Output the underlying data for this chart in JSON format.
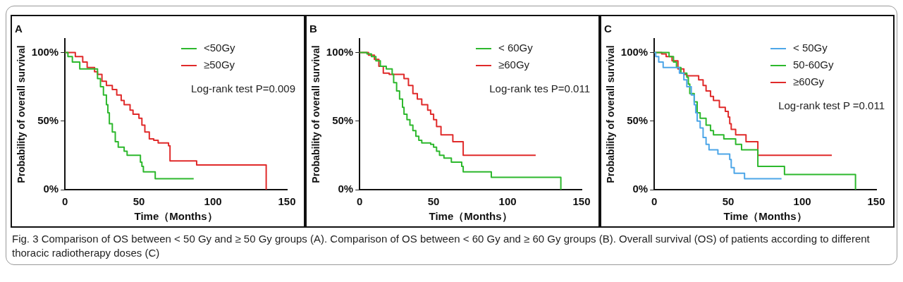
{
  "chart_data": [
    {
      "type": "step",
      "title": "A",
      "xlabel": "Time（Months）",
      "ylabel": "Probability of overall survival",
      "xlim": [
        0,
        150
      ],
      "xticks": [
        0,
        50,
        100,
        150
      ],
      "ylim": [
        0,
        110
      ],
      "yticks": [
        {
          "value": 0,
          "label": "0%"
        },
        {
          "value": 50,
          "label": "50%"
        },
        {
          "value": 100,
          "label": "100%"
        }
      ],
      "legend": "top right",
      "grid": false,
      "marker": "none",
      "annotations": [
        "Log-rank test P=0.009",
        "Fig. 3  Comparison of OS between < 50 Gy and ≥ 50 Gy groups (A). Comparison of OS between < 60 Gy and ≥ 60 Gy groups (B). Overall survival (OS) of patients according to different thoracic radiotherapy doses (C)"
      ],
      "series": [
        {
          "name": "<50Gy",
          "color": "#2db82d",
          "x": [
            0,
            2,
            5,
            10,
            22,
            24,
            26,
            28,
            29,
            30,
            32,
            34,
            36,
            40,
            42,
            51,
            52,
            53,
            61,
            87
          ],
          "values": [
            100,
            97,
            93,
            88,
            81,
            75,
            69,
            62,
            56,
            48,
            42,
            35,
            31,
            28,
            25,
            20,
            17,
            13,
            8,
            8
          ]
        },
        {
          "name": "≥50Gy",
          "color": "#e02a2a",
          "x": [
            0,
            7,
            12,
            15,
            20,
            22,
            25,
            28,
            32,
            35,
            38,
            40,
            44,
            46,
            50,
            52,
            54,
            57,
            60,
            63,
            70,
            71,
            89,
            136
          ],
          "values": [
            100,
            97,
            93,
            89,
            86,
            84,
            79,
            76,
            73,
            69,
            65,
            62,
            58,
            55,
            52,
            47,
            42,
            37,
            36,
            34,
            32,
            21,
            18,
            0
          ]
        }
      ]
    },
    {
      "type": "step",
      "title": "B",
      "xlabel": "Time（Months）",
      "ylabel": "Probability of overall survival",
      "xlim": [
        0,
        150
      ],
      "xticks": [
        0,
        50,
        100,
        150
      ],
      "ylim": [
        0,
        110
      ],
      "yticks": [
        {
          "value": 0,
          "label": "0%"
        },
        {
          "value": 50,
          "label": "50%"
        },
        {
          "value": 100,
          "label": "100%"
        }
      ],
      "legend": "top right",
      "grid": false,
      "marker": "none",
      "annotations": [
        "Log-rank tes P=0.011"
      ],
      "series": [
        {
          "name": "< 60Gy",
          "color": "#2db82d",
          "x": [
            0,
            5,
            8,
            11,
            14,
            18,
            22,
            23,
            25,
            27,
            29,
            30,
            32,
            34,
            36,
            38,
            40,
            42,
            48,
            50,
            52,
            54,
            57,
            62,
            69,
            70,
            89,
            136
          ],
          "values": [
            100,
            99,
            97,
            94,
            90,
            88,
            84,
            78,
            72,
            66,
            60,
            55,
            51,
            47,
            43,
            39,
            36,
            34,
            33,
            31,
            28,
            25,
            23,
            20,
            17,
            13,
            9,
            0
          ]
        },
        {
          "name": "≥60Gy",
          "color": "#e02a2a",
          "x": [
            0,
            6,
            10,
            13,
            16,
            20,
            30,
            33,
            36,
            39,
            42,
            46,
            48,
            50,
            52,
            55,
            63,
            70,
            119
          ],
          "values": [
            100,
            98,
            95,
            90,
            85,
            84,
            81,
            76,
            70,
            66,
            62,
            58,
            55,
            51,
            46,
            40,
            35,
            25,
            25
          ]
        }
      ]
    },
    {
      "type": "step",
      "title": "C",
      "xlabel": "Time（Months）",
      "ylabel": "Probability of overall survival",
      "xlim": [
        0,
        150
      ],
      "xticks": [
        0,
        50,
        100,
        150
      ],
      "ylim": [
        0,
        110
      ],
      "yticks": [
        {
          "value": 0,
          "label": "0%"
        },
        {
          "value": 50,
          "label": "50%"
        },
        {
          "value": 100,
          "label": "100%"
        }
      ],
      "legend": "top right",
      "grid": false,
      "marker": "none",
      "annotations": [
        "Log-rank test P =0.011"
      ],
      "series": [
        {
          "name": "< 50Gy",
          "color": "#4da6e8",
          "x": [
            0,
            1,
            3,
            6,
            17,
            20,
            22,
            25,
            27,
            28,
            29,
            31,
            33,
            35,
            37,
            43,
            51,
            52,
            54,
            61,
            86
          ],
          "values": [
            100,
            97,
            93,
            89,
            85,
            80,
            75,
            69,
            62,
            56,
            50,
            45,
            38,
            33,
            29,
            26,
            22,
            16,
            12,
            8,
            8
          ]
        },
        {
          "name": "50-60Gy",
          "color": "#2db82d",
          "x": [
            0,
            10,
            13,
            15,
            18,
            22,
            23,
            24,
            27,
            29,
            31,
            35,
            38,
            40,
            47,
            55,
            59,
            70,
            88,
            136
          ],
          "values": [
            100,
            97,
            93,
            89,
            85,
            82,
            77,
            70,
            64,
            56,
            52,
            47,
            43,
            40,
            37,
            33,
            29,
            17,
            11,
            0
          ]
        },
        {
          "name": "≥60Gy",
          "color": "#e02a2a",
          "x": [
            0,
            5,
            8,
            12,
            16,
            20,
            22,
            30,
            33,
            35,
            38,
            40,
            44,
            48,
            50,
            51,
            52,
            55,
            62,
            70,
            120
          ],
          "values": [
            100,
            99,
            97,
            94,
            88,
            84,
            83,
            80,
            76,
            72,
            68,
            65,
            60,
            57,
            53,
            48,
            44,
            40,
            35,
            25,
            25
          ]
        }
      ]
    }
  ]
}
